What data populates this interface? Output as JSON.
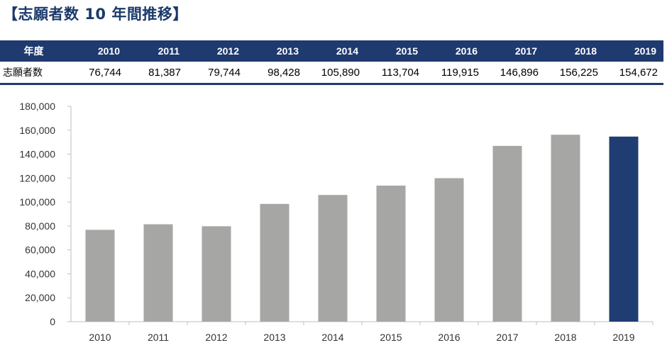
{
  "title": "【志願者数 10 年間推移】",
  "table": {
    "header_label": "年度",
    "row_label": "志願者数",
    "years": [
      "2010",
      "2011",
      "2012",
      "2013",
      "2014",
      "2015",
      "2016",
      "2017",
      "2018",
      "2019"
    ],
    "values": [
      "76,744",
      "81,387",
      "79,744",
      "98,428",
      "105,890",
      "113,704",
      "119,915",
      "146,896",
      "156,225",
      "154,672"
    ]
  },
  "colors": {
    "bar": "#a6a6a4",
    "highlight_bar": "#1f3d72",
    "header_bg": "#1e3a6e",
    "title": "#1b3a6b"
  },
  "chart_data": {
    "type": "bar",
    "categories": [
      "2010",
      "2011",
      "2012",
      "2013",
      "2014",
      "2015",
      "2016",
      "2017",
      "2018",
      "2019"
    ],
    "values": [
      76744,
      81387,
      79744,
      98428,
      105890,
      113704,
      119915,
      146896,
      156225,
      154672
    ],
    "title": "",
    "xlabel": "",
    "ylabel": "",
    "ylim": [
      0,
      180000
    ],
    "yticks": [
      0,
      20000,
      40000,
      60000,
      80000,
      100000,
      120000,
      140000,
      160000,
      180000
    ],
    "ytick_labels": [
      "0",
      "20,000",
      "40,000",
      "60,000",
      "80,000",
      "100,000",
      "120,000",
      "140,000",
      "160,000",
      "180,000"
    ],
    "highlight_category": "2019",
    "grid": false,
    "legend": "none"
  }
}
